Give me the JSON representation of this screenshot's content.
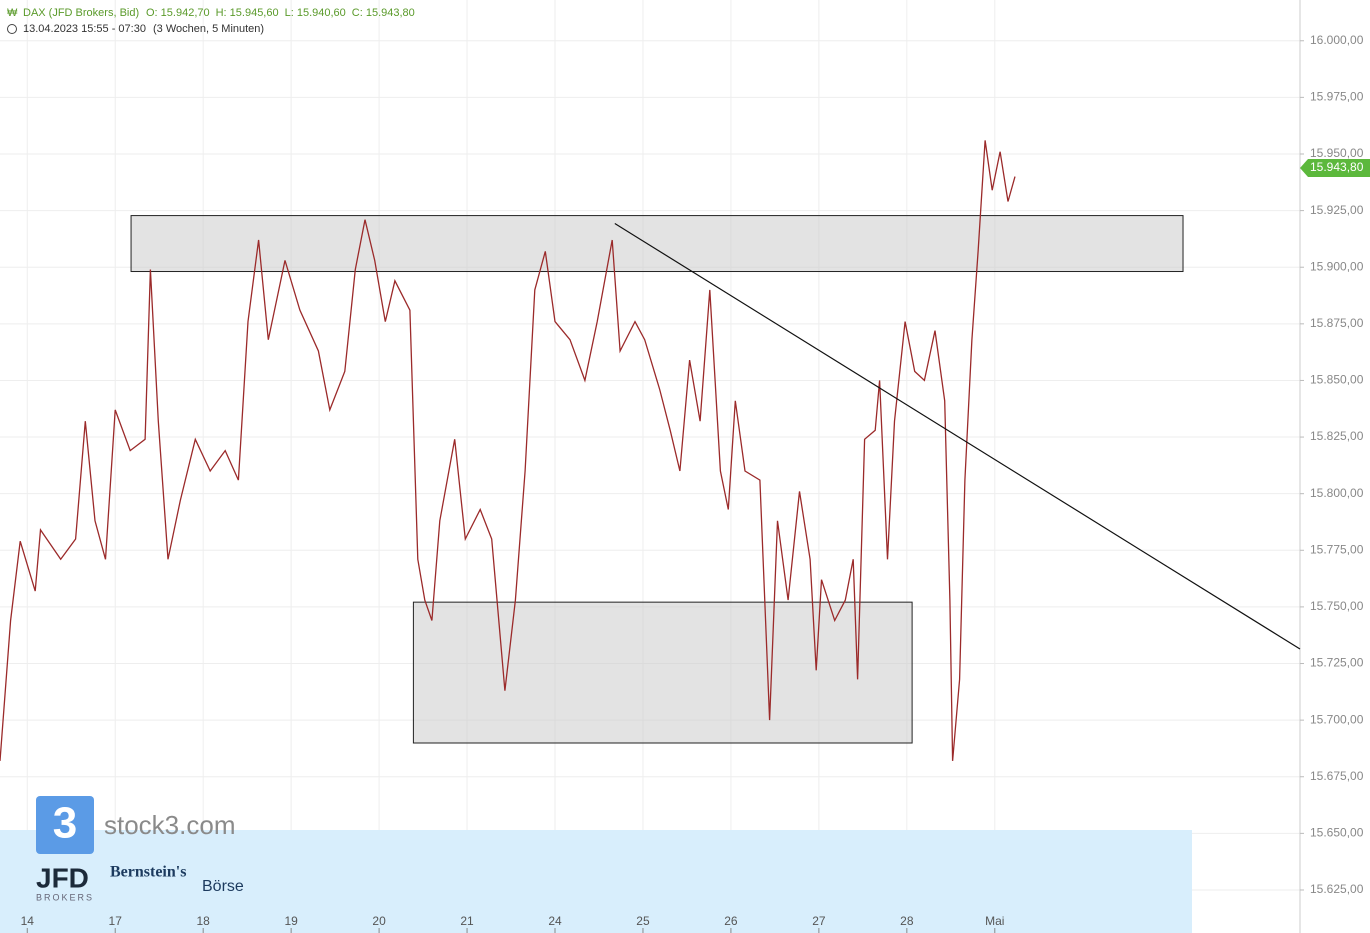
{
  "chart_data": {
    "type": "line",
    "title": "DAX (JFD Brokers, Bid)",
    "ohlc": [
      {
        "value": 15942.7,
        "label": "O: 15.942,70"
      },
      {
        "value": 15945.6,
        "label": "H: 15.945,60"
      },
      {
        "value": 15940.6,
        "label": "L: 15.940,60"
      },
      {
        "value": 15943.8,
        "label": "C: 15.943,80"
      }
    ],
    "time_range": "13.04.2023 15:55 - 07:30",
    "period": "(3 Wochen, 5 Minuten)",
    "color": "#9b2a2a",
    "x": [
      -0.31,
      -0.19,
      -0.08,
      0.09,
      0.15,
      0.38,
      0.55,
      0.66,
      0.77,
      0.89,
      1.0,
      1.17,
      1.34,
      1.4,
      1.49,
      1.6,
      1.74,
      1.91,
      2.08,
      2.25,
      2.4,
      2.51,
      2.63,
      2.74,
      2.93,
      3.1,
      3.31,
      3.44,
      3.61,
      3.73,
      3.84,
      3.95,
      4.07,
      4.18,
      4.35,
      4.44,
      4.52,
      4.6,
      4.69,
      4.86,
      4.98,
      5.15,
      5.28,
      5.43,
      5.55,
      5.66,
      5.77,
      5.89,
      6.0,
      6.17,
      6.34,
      6.48,
      6.65,
      6.74,
      6.91,
      7.02,
      7.19,
      7.31,
      7.42,
      7.53,
      7.65,
      7.76,
      7.88,
      7.97,
      8.05,
      8.16,
      8.33,
      8.44,
      8.53,
      8.65,
      8.78,
      8.9,
      8.97,
      9.03,
      9.18,
      9.3,
      9.39,
      9.44,
      9.52,
      9.64,
      9.69,
      9.78,
      9.86,
      9.98,
      10.09,
      10.2,
      10.32,
      10.43,
      10.49,
      10.52,
      10.6,
      10.66,
      10.74,
      10.81,
      10.89,
      10.97,
      11.06,
      11.15,
      11.23
    ],
    "values": [
      15682,
      15744,
      15779,
      15757,
      15784,
      15771,
      15780,
      15832,
      15788,
      15771,
      15837,
      15819,
      15824,
      15899,
      15832,
      15771,
      15797,
      15824,
      15810,
      15819,
      15806,
      15876,
      15912,
      15868,
      15903,
      15881,
      15863,
      15837,
      15854,
      15899,
      15921,
      15903,
      15876,
      15894,
      15881,
      15771,
      15753,
      15744,
      15788,
      15824,
      15780,
      15793,
      15780,
      15713,
      15753,
      15810,
      15890,
      15907,
      15876,
      15868,
      15850,
      15876,
      15912,
      15863,
      15876,
      15868,
      15846,
      15828,
      15810,
      15859,
      15832,
      15890,
      15810,
      15793,
      15841,
      15810,
      15806,
      15700,
      15788,
      15753,
      15801,
      15771,
      15722,
      15762,
      15744,
      15753,
      15771,
      15718,
      15824,
      15828,
      15850,
      15771,
      15832,
      15876,
      15854,
      15850,
      15872,
      15841,
      15753,
      15682,
      15718,
      15806,
      15868,
      15907,
      15956,
      15934,
      15951,
      15929,
      15940
    ],
    "xlim": [
      -0.31,
      14.47
    ],
    "xticks": [
      {
        "value": 0,
        "label": "14"
      },
      {
        "value": 1,
        "label": "17"
      },
      {
        "value": 2,
        "label": "18"
      },
      {
        "value": 3,
        "label": "19"
      },
      {
        "value": 4,
        "label": "20"
      },
      {
        "value": 5,
        "label": "21"
      },
      {
        "value": 6,
        "label": "24"
      },
      {
        "value": 7,
        "label": "25"
      },
      {
        "value": 8,
        "label": "26"
      },
      {
        "value": 9,
        "label": "27"
      },
      {
        "value": 10,
        "label": "28"
      },
      {
        "value": 11,
        "label": "Mai"
      }
    ],
    "ylim": [
      15606,
      16018
    ],
    "yticks": [
      {
        "value": 15625,
        "label": "15.625,00"
      },
      {
        "value": 15650,
        "label": "15.650,00"
      },
      {
        "value": 15675,
        "label": "15.675,00"
      },
      {
        "value": 15700,
        "label": "15.700,00"
      },
      {
        "value": 15725,
        "label": "15.725,00"
      },
      {
        "value": 15750,
        "label": "15.750,00"
      },
      {
        "value": 15775,
        "label": "15.775,00"
      },
      {
        "value": 15800,
        "label": "15.800,00"
      },
      {
        "value": 15825,
        "label": "15.825,00"
      },
      {
        "value": 15850,
        "label": "15.850,00"
      },
      {
        "value": 15875,
        "label": "15.875,00"
      },
      {
        "value": 15900,
        "label": "15.900,00"
      },
      {
        "value": 15925,
        "label": "15.925,00"
      },
      {
        "value": 15950,
        "label": "15.950,00"
      },
      {
        "value": 15975,
        "label": "15.975,00"
      },
      {
        "value": 16000,
        "label": "16.000,00"
      }
    ],
    "grid": true,
    "last_price": {
      "value": 15943.8,
      "label": "15.943,80",
      "color": "#5cb83c"
    },
    "zones": [
      {
        "x": [
          1.18,
          13.14
        ],
        "y": [
          15898.1,
          15922.8
        ]
      },
      {
        "x": [
          4.39,
          10.06
        ],
        "y": [
          15689.9,
          15752.1
        ]
      }
    ],
    "trendline": {
      "x": [
        6.68,
        14.47
      ],
      "y": [
        15919.3,
        15731.4
      ]
    }
  },
  "branding": {
    "icon": "3",
    "site": "stock3.com",
    "broker": "JFD",
    "broker_sub": "BROKERS",
    "partner": "Bernstein's",
    "partner_sub": "Börse"
  }
}
